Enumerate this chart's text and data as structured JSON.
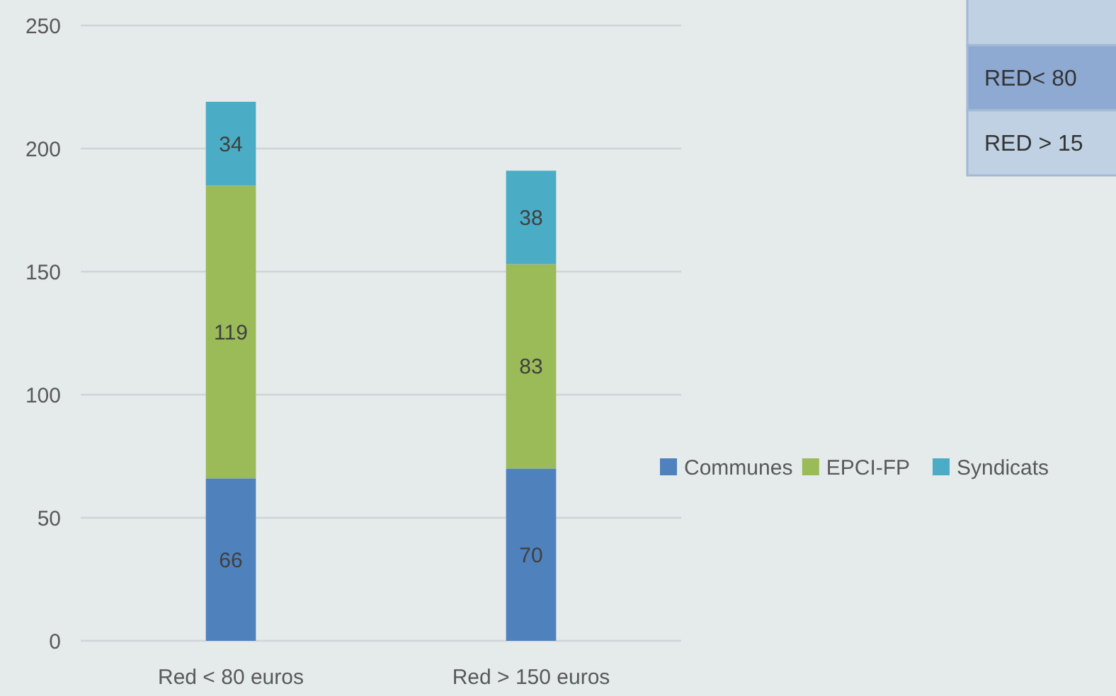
{
  "chart_data": {
    "type": "bar",
    "categories": [
      "Red < 80 euros",
      "Red > 150 euros"
    ],
    "series": [
      {
        "name": "Communes",
        "color": "#4f81bd",
        "values": [
          66,
          70
        ]
      },
      {
        "name": "EPCI-FP",
        "color": "#9bbb59",
        "values": [
          119,
          83
        ]
      },
      {
        "name": "Syndicats",
        "color": "#4bacc6",
        "values": [
          34,
          38
        ]
      }
    ],
    "stacked": true,
    "ylim": [
      0,
      250
    ],
    "yticks": [
      0,
      50,
      100,
      150,
      200,
      250
    ],
    "grid": "y",
    "legend": "right",
    "data_labels": true,
    "annotations": [
      "RED< 80",
      "RED > 15"
    ]
  }
}
